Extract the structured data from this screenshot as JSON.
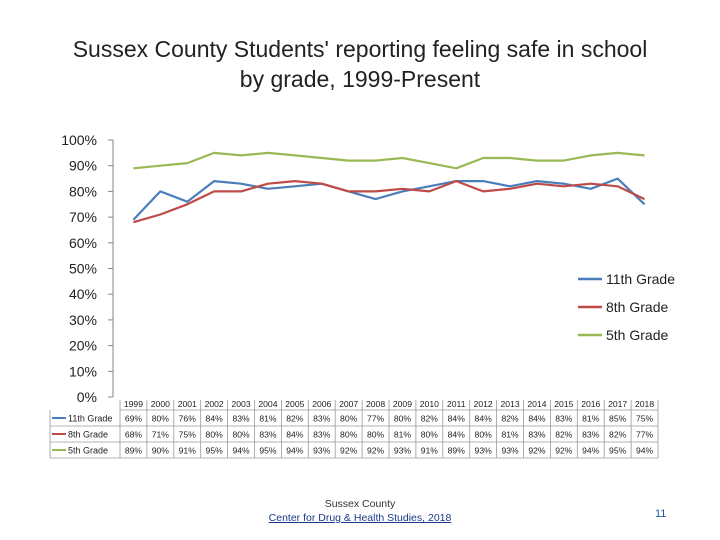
{
  "title": {
    "line1": "Sussex County Students' reporting feeling safe in school",
    "line2": "by grade, 1999-Present"
  },
  "footer": {
    "line1": "Sussex County",
    "line2": "Center for Drug & Health Studies, 2018"
  },
  "page_number": "11",
  "chart_data": {
    "type": "line",
    "title": "Sussex County Students' reporting feeling safe in school by grade, 1999-Present",
    "xlabel": "",
    "ylabel": "",
    "ylim": [
      0,
      100
    ],
    "yticks": [
      "0%",
      "10%",
      "20%",
      "30%",
      "40%",
      "50%",
      "60%",
      "70%",
      "80%",
      "90%",
      "100%"
    ],
    "grid": false,
    "legend_position": "right",
    "has_data_table": true,
    "x": [
      "1999",
      "2000",
      "2001",
      "2002",
      "2003",
      "2004",
      "2005",
      "2006",
      "2007",
      "2008",
      "2009",
      "2010",
      "2011",
      "2012",
      "2013",
      "2014",
      "2015",
      "2016",
      "2017",
      "2018"
    ],
    "series": [
      {
        "name": "11th Grade",
        "color": "#4a7ebb",
        "values": [
          69,
          80,
          76,
          84,
          83,
          81,
          82,
          83,
          80,
          77,
          80,
          82,
          84,
          84,
          82,
          84,
          83,
          81,
          85,
          75
        ],
        "labels": [
          "69%",
          "80%",
          "76%",
          "84%",
          "83%",
          "81%",
          "82%",
          "83%",
          "80%",
          "77%",
          "80%",
          "82%",
          "84%",
          "84%",
          "82%",
          "84%",
          "83%",
          "81%",
          "85%",
          "75%"
        ]
      },
      {
        "name": "8th Grade",
        "color": "#be4b48",
        "values": [
          68,
          71,
          75,
          80,
          80,
          83,
          84,
          83,
          80,
          80,
          81,
          80,
          84,
          80,
          81,
          83,
          82,
          83,
          82,
          77
        ],
        "labels": [
          "68%",
          "71%",
          "75%",
          "80%",
          "80%",
          "83%",
          "84%",
          "83%",
          "80%",
          "80%",
          "81%",
          "80%",
          "84%",
          "80%",
          "81%",
          "83%",
          "82%",
          "83%",
          "82%",
          "77%"
        ]
      },
      {
        "name": "5th Grade",
        "color": "#98b954",
        "values": [
          89,
          90,
          91,
          95,
          94,
          95,
          94,
          93,
          92,
          92,
          93,
          91,
          89,
          93,
          93,
          92,
          92,
          94,
          95,
          94
        ],
        "labels": [
          "89%",
          "90%",
          "91%",
          "95%",
          "94%",
          "95%",
          "94%",
          "93%",
          "92%",
          "92%",
          "93%",
          "91%",
          "89%",
          "93%",
          "93%",
          "92%",
          "92%",
          "94%",
          "95%",
          "94%"
        ]
      }
    ]
  }
}
